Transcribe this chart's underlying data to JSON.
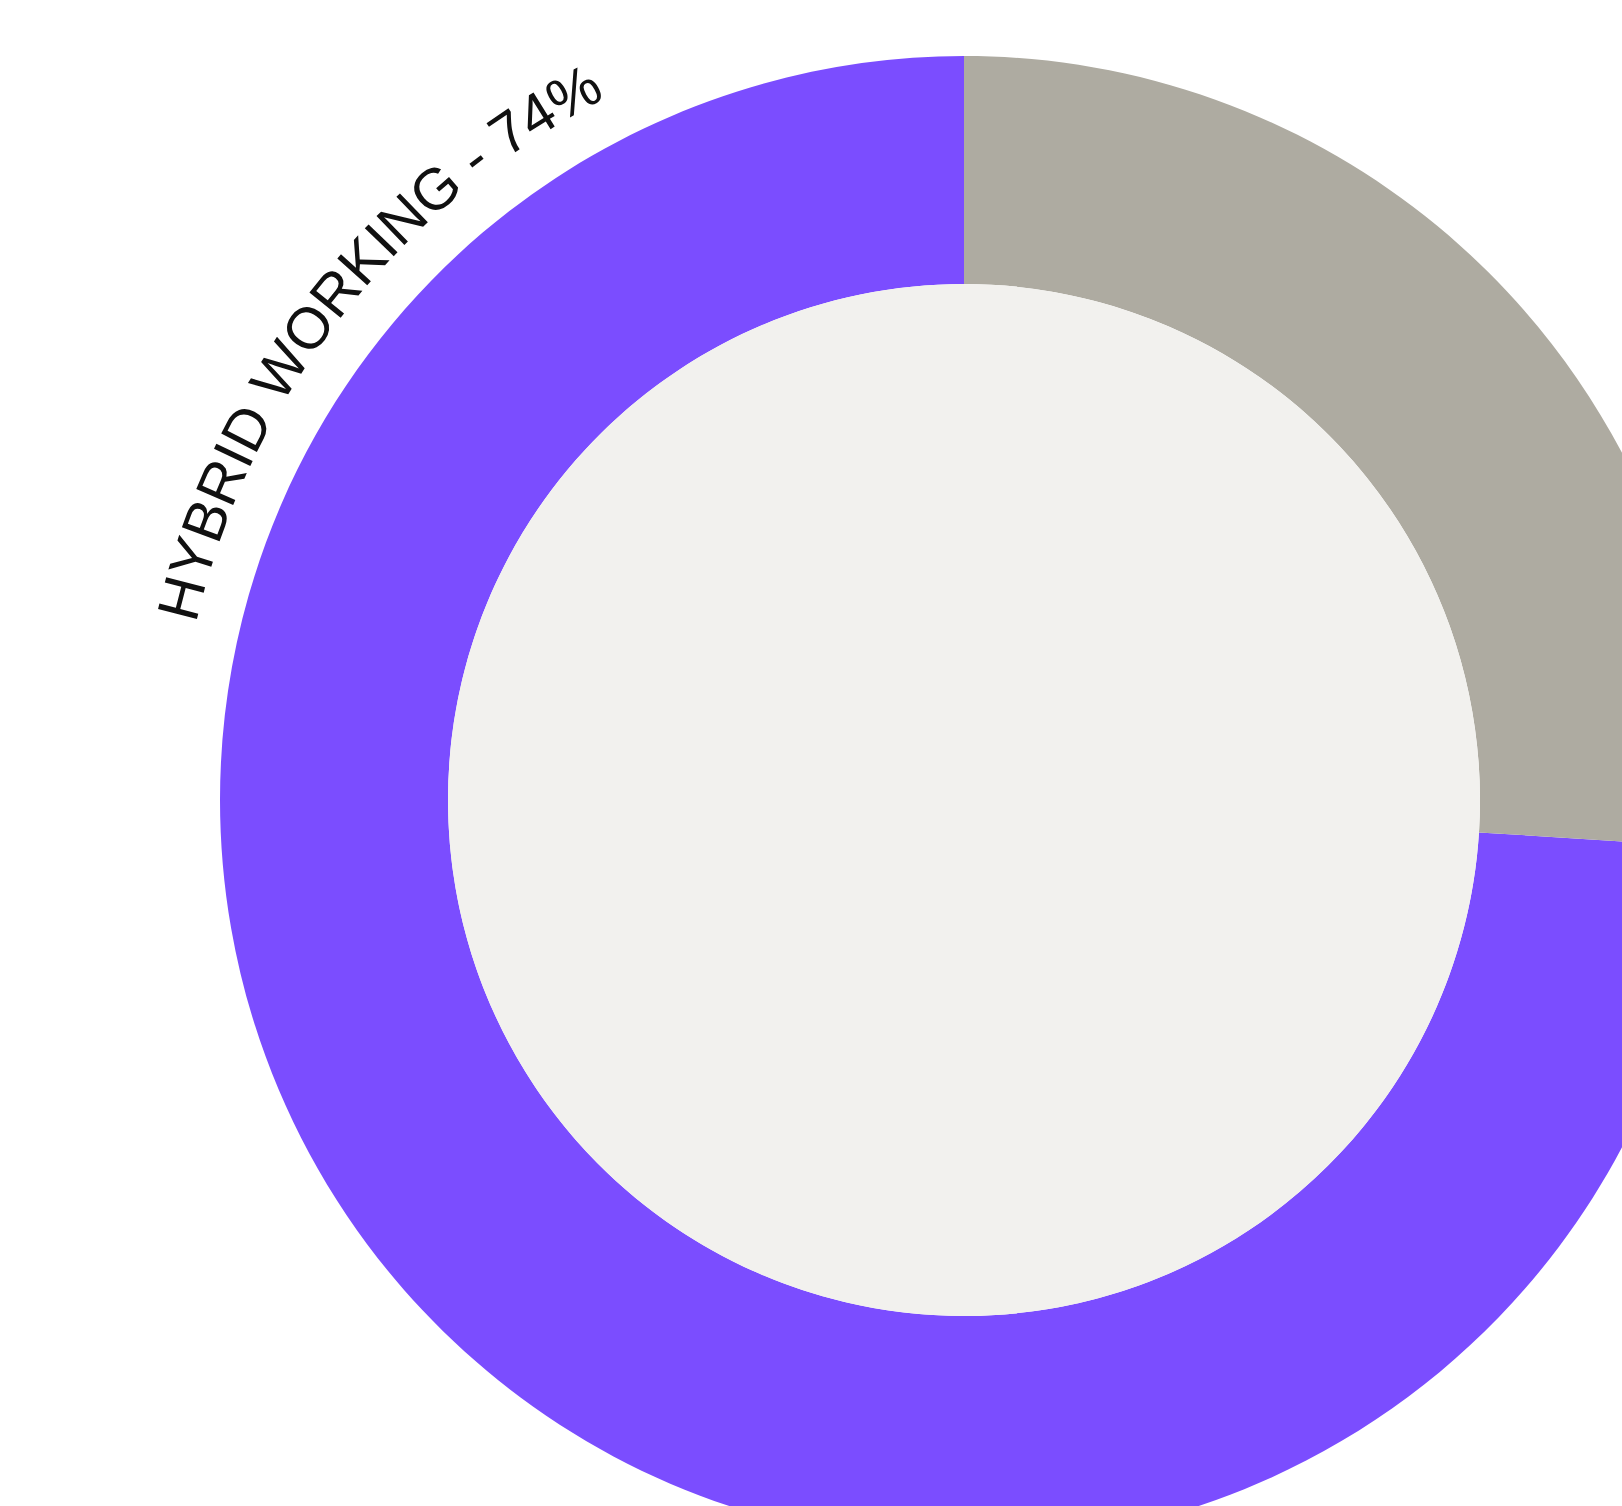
{
  "chart_data": {
    "type": "donut",
    "categories": [
      "HYBRID WORKING - 74%",
      null
    ],
    "values": [
      74,
      26
    ],
    "colors": [
      "#7b4dff",
      "#aeaba1"
    ]
  }
}
